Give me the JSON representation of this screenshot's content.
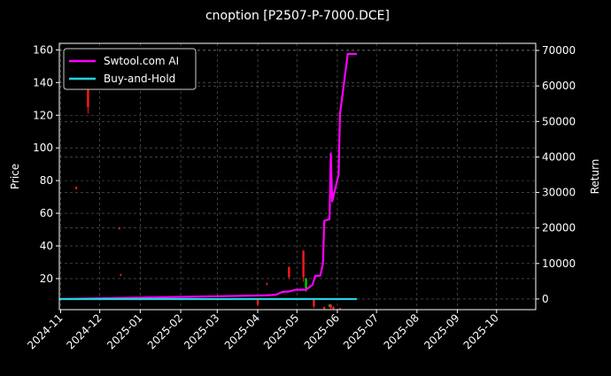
{
  "chart_data": {
    "type": "line",
    "title": "cnoption [P2507-P-7000.DCE]",
    "xlabel": "",
    "ylabel_left": "Price",
    "ylabel_right": "Return",
    "grid": true,
    "legend_position": "top-left",
    "x_ticks": [
      "2024-11",
      "2024-12",
      "2025-01",
      "2025-02",
      "2025-03",
      "2025-04",
      "2025-05",
      "2025-06",
      "2025-07",
      "2025-08",
      "2025-09",
      "2025-10"
    ],
    "x_range": [
      "2024-10-31",
      "2025-10-31"
    ],
    "y_left_range": [
      1,
      164
    ],
    "y_left_ticks": [
      20,
      40,
      60,
      80,
      100,
      120,
      140,
      160
    ],
    "y_right_range": [
      -3000,
      72000
    ],
    "y_right_ticks": [
      0,
      10000,
      20000,
      30000,
      40000,
      50000,
      60000,
      70000
    ],
    "colors": {
      "ai": "#ff00ff",
      "buyhold": "#22d3dd",
      "up": "#00c800",
      "down": "#ff1a1a",
      "grid": "#666666",
      "axis": "#ffffff"
    },
    "series": [
      {
        "name": "Swtool.com AI",
        "axis": "right",
        "points": [
          [
            "2024-10-31",
            0
          ],
          [
            "2025-04-07",
            1000
          ],
          [
            "2025-04-15",
            1200
          ],
          [
            "2025-04-20",
            2000
          ],
          [
            "2025-04-25",
            2100
          ],
          [
            "2025-04-30",
            2600
          ],
          [
            "2025-05-06",
            2600
          ],
          [
            "2025-05-08",
            2600
          ],
          [
            "2025-05-13",
            4000
          ],
          [
            "2025-05-15",
            6500
          ],
          [
            "2025-05-19",
            6600
          ],
          [
            "2025-05-21",
            10000
          ],
          [
            "2025-05-22",
            22000
          ],
          [
            "2025-05-26",
            22500
          ],
          [
            "2025-05-27",
            41000
          ],
          [
            "2025-05-28",
            27500
          ],
          [
            "2025-06-02",
            35000
          ],
          [
            "2025-06-03",
            52000
          ],
          [
            "2025-06-09",
            69000
          ],
          [
            "2025-06-16",
            69000
          ]
        ]
      },
      {
        "name": "Buy-and-Hold",
        "axis": "right",
        "points": [
          [
            "2024-10-31",
            0
          ],
          [
            "2025-06-16",
            0
          ]
        ]
      }
    ],
    "candles": [
      {
        "date": "2024-11-13",
        "open": 76,
        "close": 75,
        "low": 74.5,
        "high": 76.5
      },
      {
        "date": "2024-11-22",
        "open": 145,
        "close": 125,
        "low": 121,
        "high": 148
      },
      {
        "date": "2024-12-16",
        "open": 51,
        "close": 50.5,
        "low": 50,
        "high": 51.5
      },
      {
        "date": "2024-12-17",
        "open": 22.5,
        "close": 22,
        "low": 21.5,
        "high": 23
      },
      {
        "date": "2025-04-01",
        "open": 7,
        "close": 4,
        "low": 3,
        "high": 8
      },
      {
        "date": "2025-04-08",
        "open": 17,
        "close": 16.5,
        "low": 16,
        "high": 17.5
      },
      {
        "date": "2025-04-25",
        "open": 27,
        "close": 21,
        "low": 20,
        "high": 27.5
      },
      {
        "date": "2025-05-06",
        "open": 37,
        "close": 21,
        "low": 18,
        "high": 37.5
      },
      {
        "date": "2025-05-08",
        "open": 14,
        "close": 20,
        "low": 12,
        "high": 20.5
      },
      {
        "date": "2025-05-14",
        "open": 7,
        "close": 3,
        "low": 2,
        "high": 8
      },
      {
        "date": "2025-05-22",
        "open": 2.5,
        "close": 1.5,
        "low": 1.2,
        "high": 3
      },
      {
        "date": "2025-05-26",
        "open": 3,
        "close": 4,
        "low": 2.5,
        "high": 4.5
      },
      {
        "date": "2025-05-27",
        "open": 4,
        "close": 2,
        "low": 1.5,
        "high": 4.5
      },
      {
        "date": "2025-05-29",
        "open": 2.5,
        "close": 1.5,
        "low": 1.2,
        "high": 3
      },
      {
        "date": "2025-06-03",
        "open": 1.8,
        "close": 1.5,
        "low": 1.2,
        "high": 2
      }
    ]
  }
}
